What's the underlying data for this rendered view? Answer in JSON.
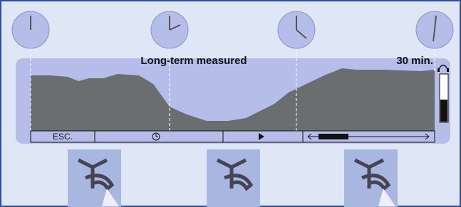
{
  "header": {
    "title": "Long-term measured",
    "duration": "30 min."
  },
  "buttons": [
    {
      "label": "ESC."
    }
  ]
}
